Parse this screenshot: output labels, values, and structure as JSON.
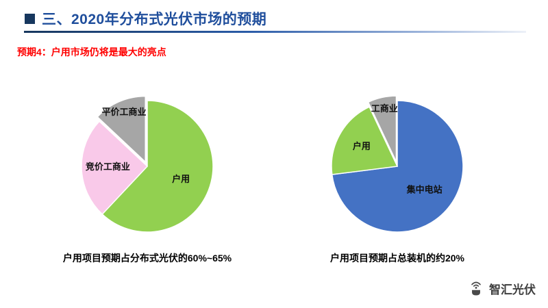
{
  "slide": {
    "title": "三、2020年分布式光伏市场的预期",
    "subtitle": "预期4：户用市场仍将是最大的亮点",
    "logo_text": "智汇光伏"
  },
  "chart_data": [
    {
      "type": "pie",
      "title": "户用项目预期占分布式光伏的60%~65%",
      "legend_position": "none",
      "slices": [
        {
          "label": "户用",
          "value": 62,
          "color": "#92D050",
          "exploded": false,
          "label_radius": 0.55
        },
        {
          "label": "竞价工商业",
          "value": 25,
          "color": "#F9C9E9",
          "exploded": false,
          "label_radius": 0.6
        },
        {
          "label": "平价工商业",
          "value": 13,
          "color": "#A6A6A6",
          "exploded": true,
          "label_radius": 0.82
        }
      ]
    },
    {
      "type": "pie",
      "title": "户用项目预期占总装机的约20%",
      "legend_position": "none",
      "slices": [
        {
          "label": "集中电站",
          "value": 73,
          "color": "#4472C4",
          "exploded": false,
          "label_radius": 0.55
        },
        {
          "label": "户用",
          "value": 20,
          "color": "#92D050",
          "exploded": false,
          "label_radius": 0.62
        },
        {
          "label": "工商业",
          "value": 7,
          "color": "#A6A6A6",
          "exploded": true,
          "label_radius": 0.82
        }
      ]
    }
  ]
}
